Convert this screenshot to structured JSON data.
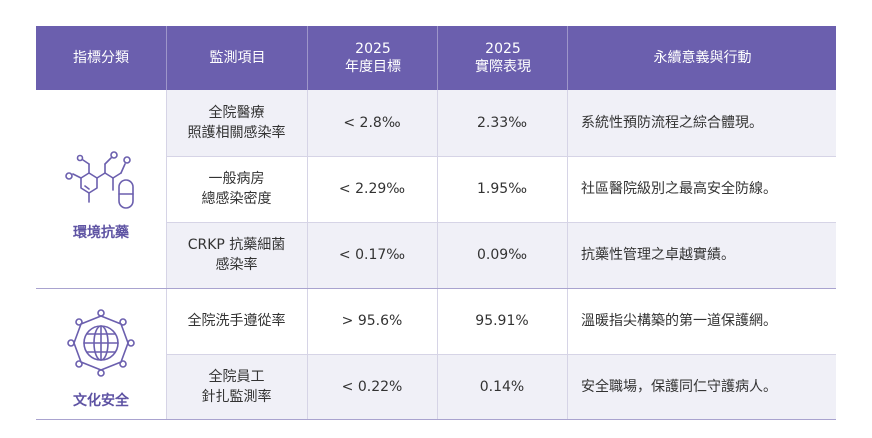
{
  "headers": [
    {
      "line1": "指標分類",
      "line2": ""
    },
    {
      "line1": "監測項目",
      "line2": ""
    },
    {
      "line1": "2025",
      "line2": "年度目標"
    },
    {
      "line1": "2025",
      "line2": "實際表現"
    },
    {
      "line1": "永續意義與行動",
      "line2": ""
    }
  ],
  "categories": [
    {
      "label": "環境抗藥",
      "icon": "molecule-icon"
    },
    {
      "label": "文化安全",
      "icon": "globe-network-icon"
    }
  ],
  "rows": [
    {
      "item_l1": "全院醫療",
      "item_l2": "照護相關感染率",
      "target": "< 2.8‰",
      "actual": "2.33‰",
      "meaning": "系統性預防流程之綜合體現。"
    },
    {
      "item_l1": "一般病房",
      "item_l2": "總感染密度",
      "target": "< 2.29‰",
      "actual": "1.95‰",
      "meaning": "社區醫院級別之最高安全防線。"
    },
    {
      "item_l1": "CRKP 抗藥細菌",
      "item_l2": "感染率",
      "target": "< 0.17‰",
      "actual": "0.09‰",
      "meaning": "抗藥性管理之卓越實績。"
    },
    {
      "item_l1": "全院洗手遵從率",
      "item_l2": "",
      "target": "> 95.6%",
      "actual": "95.91%",
      "meaning": "溫暖指尖構築的第一道保護網。"
    },
    {
      "item_l1": "全院員工",
      "item_l2": "針扎監測率",
      "target": "< 0.22%",
      "actual": "0.14%",
      "meaning": "安全職場，保護同仁守護病人。"
    }
  ],
  "colors": {
    "header_bg": "#6b5fae",
    "accent": "#5e53a3",
    "row_shade": "#f0f0f7"
  }
}
